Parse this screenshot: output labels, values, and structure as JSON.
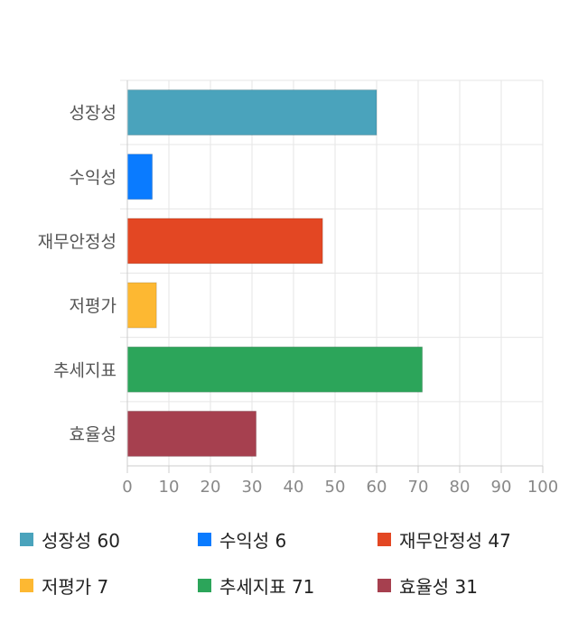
{
  "chart_data": {
    "type": "bar",
    "orientation": "horizontal",
    "categories": [
      "성장성",
      "수익성",
      "재무안정성",
      "저평가",
      "추세지표",
      "효율성"
    ],
    "values": [
      60,
      6,
      47,
      7,
      71,
      31
    ],
    "colors": [
      "#4aa3bc",
      "#0a7bff",
      "#e34723",
      "#fdb832",
      "#2ca55a",
      "#a6404f"
    ],
    "xlim": [
      0,
      100
    ],
    "xticks": [
      "0",
      "10",
      "20",
      "30",
      "40",
      "50",
      "60",
      "70",
      "80",
      "90",
      "100"
    ],
    "grid": true,
    "legend_position": "bottom",
    "legend": [
      "성장성 60",
      "수익성 6",
      "재무안정성 47",
      "저평가 7",
      "추세지표 71",
      "효율성 31"
    ]
  }
}
